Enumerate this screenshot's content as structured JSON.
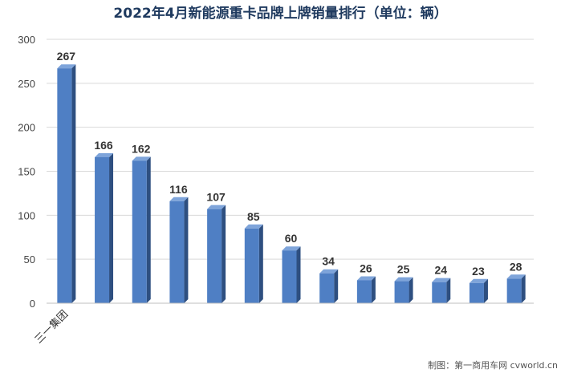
{
  "chart_data": {
    "type": "bar",
    "title": "2022年4月新能源重卡品牌上牌销量排行（单位：辆）",
    "xlabel": "",
    "ylabel": "",
    "ylim": [
      0,
      300
    ],
    "yticks": [
      0,
      50,
      100,
      150,
      200,
      250,
      300
    ],
    "grid": true,
    "categories": [
      "三一集团",
      "",
      "",
      "",
      "",
      "",
      "",
      "",
      "",
      "",
      "",
      "",
      ""
    ],
    "values": [
      267,
      166,
      162,
      116,
      107,
      85,
      60,
      34,
      26,
      25,
      24,
      23,
      28
    ],
    "colors": {
      "bar_front": "#4f7fc4",
      "bar_side": "#2e4f80",
      "bar_top": "#7ea4da",
      "grid": "#d9d9d9",
      "title": "#1f3a5f"
    }
  },
  "watermark": "制图：第一商用车网 cvworld.cn"
}
